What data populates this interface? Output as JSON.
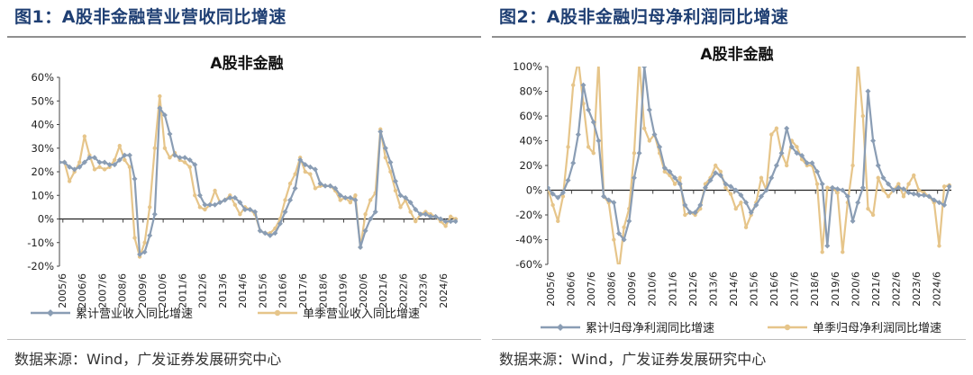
{
  "figures": [
    {
      "title": "图1：A股非金融营业营收同比增速",
      "source": "数据来源：Wind，广发证券发展研究中心"
    },
    {
      "title": "图2：A股非金融归母净利润同比增速",
      "source": "数据来源：Wind，广发证券发展研究中心"
    }
  ],
  "colors": {
    "series1": "#8a9db4",
    "series2": "#e6c58a",
    "title": "#1f3f73",
    "zero": "#222222"
  },
  "chart_data": [
    {
      "type": "line",
      "title": "A股非金融",
      "xlabel": "",
      "ylabel": "",
      "ylim": [
        -0.2,
        0.6
      ],
      "yticks": [
        -0.2,
        -0.1,
        0,
        0.1,
        0.2,
        0.3,
        0.4,
        0.5,
        0.6
      ],
      "ytick_labels": [
        "-20%",
        "-10%",
        "0%",
        "10%",
        "20%",
        "30%",
        "40%",
        "50%",
        "60%"
      ],
      "x_range": [
        2005.25,
        2025.1
      ],
      "xticks": [
        2005.42,
        2006.42,
        2007.42,
        2008.42,
        2009.42,
        2010.42,
        2011.42,
        2012.42,
        2013.42,
        2014.42,
        2015.42,
        2016.42,
        2017.42,
        2018.42,
        2019.42,
        2020.42,
        2021.42,
        2022.42,
        2023.42,
        2024.42
      ],
      "xtick_labels": [
        "2005/6",
        "2006/6",
        "2007/6",
        "2008/6",
        "2009/6",
        "2010/6",
        "2011/6",
        "2012/6",
        "2013/6",
        "2014/6",
        "2015/6",
        "2016/6",
        "2017/6",
        "2018/6",
        "2019/6",
        "2020/6",
        "2021/6",
        "2022/6",
        "2023/6",
        "2024/6"
      ],
      "legend_position": "bottom",
      "series": [
        {
          "name": "累计营业收入同比增速",
          "color": "#8a9db4",
          "marker": "diamond",
          "x": [
            2005.25,
            2005.5,
            2005.75,
            2006.0,
            2006.25,
            2006.5,
            2006.75,
            2007.0,
            2007.25,
            2007.5,
            2007.75,
            2008.0,
            2008.25,
            2008.5,
            2008.75,
            2009.0,
            2009.25,
            2009.5,
            2009.75,
            2010.0,
            2010.25,
            2010.5,
            2010.75,
            2011.0,
            2011.25,
            2011.5,
            2011.75,
            2012.0,
            2012.25,
            2012.5,
            2012.75,
            2013.0,
            2013.25,
            2013.5,
            2013.75,
            2014.0,
            2014.25,
            2014.5,
            2014.75,
            2015.0,
            2015.25,
            2015.5,
            2015.75,
            2016.0,
            2016.25,
            2016.5,
            2016.75,
            2017.0,
            2017.25,
            2017.5,
            2017.75,
            2018.0,
            2018.25,
            2018.5,
            2018.75,
            2019.0,
            2019.25,
            2019.5,
            2019.75,
            2020.0,
            2020.25,
            2020.5,
            2020.75,
            2021.0,
            2021.25,
            2021.5,
            2021.75,
            2022.0,
            2022.25,
            2022.5,
            2022.75,
            2023.0,
            2023.25,
            2023.5,
            2023.75,
            2024.0,
            2024.25,
            2024.5,
            2024.75,
            2025.0
          ],
          "y": [
            0.24,
            0.24,
            0.22,
            0.21,
            0.22,
            0.24,
            0.26,
            0.26,
            0.24,
            0.24,
            0.23,
            0.23,
            0.25,
            0.27,
            0.27,
            0.17,
            -0.15,
            -0.14,
            -0.07,
            0.02,
            0.47,
            0.44,
            0.36,
            0.27,
            0.26,
            0.26,
            0.25,
            0.23,
            0.1,
            0.06,
            0.06,
            0.06,
            0.07,
            0.08,
            0.09,
            0.09,
            0.07,
            0.04,
            0.04,
            0.03,
            -0.05,
            -0.06,
            -0.07,
            -0.06,
            -0.02,
            0.03,
            0.08,
            0.13,
            0.25,
            0.23,
            0.22,
            0.21,
            0.15,
            0.14,
            0.14,
            0.13,
            0.1,
            0.09,
            0.09,
            0.08,
            -0.12,
            -0.05,
            0.0,
            0.03,
            0.37,
            0.3,
            0.24,
            0.16,
            0.1,
            0.09,
            0.07,
            0.04,
            0.02,
            0.02,
            0.01,
            0.01,
            0.0,
            -0.01,
            -0.01,
            -0.01
          ]
        },
        {
          "name": "单季营业收入同比增速",
          "color": "#e6c58a",
          "marker": "circle",
          "x": [
            2005.25,
            2005.5,
            2005.75,
            2006.0,
            2006.25,
            2006.5,
            2006.75,
            2007.0,
            2007.25,
            2007.5,
            2007.75,
            2008.0,
            2008.25,
            2008.5,
            2008.75,
            2009.0,
            2009.25,
            2009.5,
            2009.75,
            2010.0,
            2010.25,
            2010.5,
            2010.75,
            2011.0,
            2011.25,
            2011.5,
            2011.75,
            2012.0,
            2012.25,
            2012.5,
            2012.75,
            2013.0,
            2013.25,
            2013.5,
            2013.75,
            2014.0,
            2014.25,
            2014.5,
            2014.75,
            2015.0,
            2015.25,
            2015.5,
            2015.75,
            2016.0,
            2016.25,
            2016.5,
            2016.75,
            2017.0,
            2017.25,
            2017.5,
            2017.75,
            2018.0,
            2018.25,
            2018.5,
            2018.75,
            2019.0,
            2019.25,
            2019.5,
            2019.75,
            2020.0,
            2020.25,
            2020.5,
            2020.75,
            2021.0,
            2021.25,
            2021.5,
            2021.75,
            2022.0,
            2022.25,
            2022.5,
            2022.75,
            2023.0,
            2023.25,
            2023.5,
            2023.75,
            2024.0,
            2024.25,
            2024.5,
            2024.75,
            2025.0
          ],
          "y": [
            0.24,
            0.24,
            0.16,
            0.2,
            0.24,
            0.35,
            0.27,
            0.21,
            0.22,
            0.21,
            0.22,
            0.25,
            0.31,
            0.25,
            0.22,
            -0.08,
            -0.16,
            -0.1,
            0.05,
            0.3,
            0.52,
            0.3,
            0.26,
            0.28,
            0.25,
            0.24,
            0.22,
            0.1,
            0.05,
            0.04,
            0.06,
            0.12,
            0.07,
            0.08,
            0.1,
            0.06,
            0.02,
            0.05,
            0.04,
            0.02,
            -0.05,
            -0.06,
            -0.06,
            -0.04,
            0.0,
            0.08,
            0.15,
            0.19,
            0.26,
            0.2,
            0.19,
            0.13,
            0.14,
            0.14,
            0.14,
            0.12,
            0.08,
            0.09,
            0.07,
            0.1,
            -0.12,
            0.02,
            0.08,
            0.11,
            0.38,
            0.26,
            0.2,
            0.12,
            0.05,
            0.08,
            0.03,
            -0.01,
            0.02,
            0.03,
            0.02,
            0.01,
            -0.01,
            -0.03,
            0.01,
            0.0
          ]
        }
      ]
    },
    {
      "type": "line",
      "title": "A股非金融",
      "xlabel": "",
      "ylabel": "",
      "ylim": [
        -0.6,
        1.0
      ],
      "yticks": [
        -0.6,
        -0.4,
        -0.2,
        0,
        0.2,
        0.4,
        0.6,
        0.8,
        1.0
      ],
      "ytick_labels": [
        "-60%",
        "-40%",
        "-20%",
        "0%",
        "20%",
        "40%",
        "60%",
        "80%",
        "100%"
      ],
      "x_range": [
        2005.25,
        2025.1
      ],
      "xticks": [
        2005.42,
        2006.42,
        2007.42,
        2008.42,
        2009.42,
        2010.42,
        2011.42,
        2012.42,
        2013.42,
        2014.42,
        2015.42,
        2016.42,
        2017.42,
        2018.42,
        2019.42,
        2020.42,
        2021.42,
        2022.42,
        2023.42,
        2024.42
      ],
      "xtick_labels": [
        "2005/6",
        "2006/6",
        "2007/6",
        "2008/6",
        "2009/6",
        "2010/6",
        "2011/6",
        "2012/6",
        "2013/6",
        "2014/6",
        "2015/6",
        "2016/6",
        "2017/6",
        "2018/6",
        "2019/6",
        "2020/6",
        "2021/6",
        "2022/6",
        "2023/6",
        "2024/6"
      ],
      "legend_position": "bottom",
      "series": [
        {
          "name": "累计归母净利润同比增速",
          "color": "#8a9db4",
          "marker": "diamond",
          "x": [
            2005.25,
            2005.5,
            2005.75,
            2006.0,
            2006.25,
            2006.5,
            2006.75,
            2007.0,
            2007.25,
            2007.5,
            2007.75,
            2008.0,
            2008.25,
            2008.5,
            2008.75,
            2009.0,
            2009.25,
            2009.5,
            2009.75,
            2010.0,
            2010.25,
            2010.5,
            2010.75,
            2011.0,
            2011.25,
            2011.5,
            2011.75,
            2012.0,
            2012.25,
            2012.5,
            2012.75,
            2013.0,
            2013.25,
            2013.5,
            2013.75,
            2014.0,
            2014.25,
            2014.5,
            2014.75,
            2015.0,
            2015.25,
            2015.5,
            2015.75,
            2016.0,
            2016.25,
            2016.5,
            2016.75,
            2017.0,
            2017.25,
            2017.5,
            2017.75,
            2018.0,
            2018.25,
            2018.5,
            2018.75,
            2019.0,
            2019.25,
            2019.5,
            2019.75,
            2020.0,
            2020.25,
            2020.5,
            2020.75,
            2021.0,
            2021.25,
            2021.5,
            2021.75,
            2022.0,
            2022.25,
            2022.5,
            2022.75,
            2023.0,
            2023.25,
            2023.5,
            2023.75,
            2024.0,
            2024.25,
            2024.5,
            2024.75,
            2025.0
          ],
          "y": [
            0.02,
            -0.03,
            -0.06,
            -0.02,
            0.08,
            0.22,
            0.45,
            0.85,
            0.65,
            0.55,
            0.4,
            -0.05,
            -0.08,
            -0.1,
            -0.35,
            -0.4,
            -0.25,
            0.1,
            0.3,
            1.0,
            0.65,
            0.45,
            0.35,
            0.18,
            0.15,
            0.1,
            0.05,
            -0.12,
            -0.18,
            -0.18,
            -0.12,
            0.02,
            0.08,
            0.14,
            0.12,
            0.05,
            0.03,
            0.0,
            -0.04,
            -0.1,
            -0.18,
            -0.12,
            -0.05,
            0.0,
            0.1,
            0.2,
            0.3,
            0.5,
            0.35,
            0.3,
            0.28,
            0.22,
            0.22,
            0.15,
            0.05,
            -0.45,
            0.02,
            0.01,
            0.0,
            -0.05,
            -0.25,
            -0.1,
            0.02,
            0.8,
            0.4,
            0.2,
            0.1,
            0.05,
            0.0,
            0.02,
            0.01,
            -0.02,
            -0.03,
            -0.04,
            -0.04,
            -0.05,
            -0.08,
            -0.1,
            -0.12,
            0.03
          ]
        },
        {
          "name": "单季归母净利润同比增速",
          "color": "#e6c58a",
          "marker": "circle",
          "x": [
            2005.25,
            2005.5,
            2005.75,
            2006.0,
            2006.25,
            2006.5,
            2006.75,
            2007.0,
            2007.25,
            2007.5,
            2007.75,
            2008.0,
            2008.25,
            2008.5,
            2008.75,
            2009.0,
            2009.25,
            2009.5,
            2009.75,
            2010.0,
            2010.25,
            2010.5,
            2010.75,
            2011.0,
            2011.25,
            2011.5,
            2011.75,
            2012.0,
            2012.25,
            2012.5,
            2012.75,
            2013.0,
            2013.25,
            2013.5,
            2013.75,
            2014.0,
            2014.25,
            2014.5,
            2014.75,
            2015.0,
            2015.25,
            2015.5,
            2015.75,
            2016.0,
            2016.25,
            2016.5,
            2016.75,
            2017.0,
            2017.25,
            2017.5,
            2017.75,
            2018.0,
            2018.25,
            2018.5,
            2018.75,
            2019.0,
            2019.25,
            2019.5,
            2019.75,
            2020.0,
            2020.25,
            2020.5,
            2020.75,
            2021.0,
            2021.25,
            2021.5,
            2021.75,
            2022.0,
            2022.25,
            2022.5,
            2022.75,
            2023.0,
            2023.25,
            2023.5,
            2023.75,
            2024.0,
            2024.25,
            2024.5,
            2024.75,
            2025.0
          ],
          "y": [
            0.02,
            -0.12,
            -0.25,
            -0.05,
            0.35,
            0.85,
            1.05,
            0.7,
            0.35,
            0.3,
            1.05,
            -0.05,
            -0.1,
            -0.4,
            -0.65,
            -0.3,
            -0.15,
            0.3,
            1.05,
            0.5,
            0.4,
            0.45,
            0.3,
            0.15,
            0.12,
            0.05,
            0.1,
            -0.2,
            -0.18,
            -0.2,
            -0.15,
            0.05,
            0.1,
            0.2,
            0.15,
            0.02,
            -0.03,
            -0.15,
            -0.1,
            -0.3,
            -0.2,
            -0.1,
            0.1,
            0.0,
            0.45,
            0.5,
            0.3,
            0.2,
            0.4,
            0.35,
            0.25,
            0.2,
            0.2,
            0.05,
            -0.5,
            0.02,
            0.02,
            -0.02,
            -0.5,
            -0.1,
            0.2,
            1.05,
            0.6,
            -0.15,
            -0.2,
            0.1,
            0.0,
            -0.05,
            0.0,
            0.05,
            -0.05,
            0.05,
            0.12,
            0.0,
            -0.02,
            -0.05,
            -0.1,
            -0.45,
            0.03,
            0.04
          ]
        }
      ]
    }
  ]
}
